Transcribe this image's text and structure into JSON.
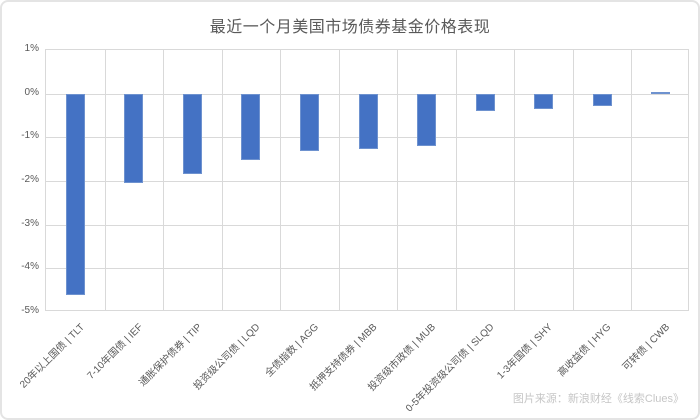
{
  "chart_data": {
    "type": "bar",
    "title": "最近一个月美国市场债券基金价格表现",
    "categories": [
      "20年以上国债 | TLT",
      "7-10年国债 | IEF",
      "通胀保护债券 | TIP",
      "投资级公司债 | LQD",
      "全债指数 | AGG",
      "抵押支持债券 | MBB",
      "投资级市政债 | MUB",
      "0-5年投资级公司债 | SLQD",
      "1-3年国债 | SHY",
      "高收益债 | HYG",
      "可转债 | CWB"
    ],
    "values": [
      -4.6,
      -2.05,
      -1.83,
      -1.53,
      -1.31,
      -1.26,
      -1.2,
      -0.4,
      -0.34,
      -0.28,
      0.03
    ],
    "unit": "%",
    "xlabel": "",
    "ylabel": "",
    "ylim": [
      -5,
      1
    ],
    "yticks": [
      1,
      0,
      -1,
      -2,
      -3,
      -4,
      -5
    ],
    "ytick_labels": [
      "1%",
      "0%",
      "-1%",
      "-2%",
      "-3%",
      "-4%",
      "-5%"
    ],
    "grid": true,
    "legend": false
  },
  "source": "图片来源：新浪财经《线索Clues》",
  "colors": {
    "bar": "#4472c4",
    "bar_edge": "#6e92cf",
    "gridline": "#d9d9d9",
    "axis_text": "#595959",
    "title_text": "#595959",
    "source_text": "#c6c6c6",
    "border": "#e4e4e4"
  }
}
